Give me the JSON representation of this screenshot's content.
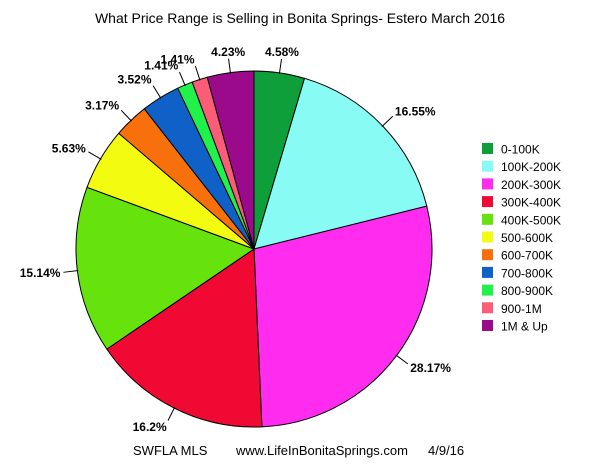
{
  "chart_data": {
    "type": "pie",
    "title": "What Price Range is Selling in Bonita Springs- Estero March 2016",
    "footer": {
      "source": "SWFLA MLS",
      "site": "www.LifeInBonitaSprings.com",
      "date": "4/9/16"
    },
    "legend_position": "right",
    "slices": [
      {
        "label": "0-100K",
        "value": 4.58,
        "value_label": "4.58%",
        "color": "#0e9e3a"
      },
      {
        "label": "100K-200K",
        "value": 16.55,
        "value_label": "16.55%",
        "color": "#88fbf4"
      },
      {
        "label": "200K-300K",
        "value": 28.17,
        "value_label": "28.17%",
        "color": "#ff2cf0"
      },
      {
        "label": "300K-400K",
        "value": 16.2,
        "value_label": "16.2%",
        "color": "#f00a33"
      },
      {
        "label": "400K-500K",
        "value": 15.14,
        "value_label": "15.14%",
        "color": "#66e30d"
      },
      {
        "label": "500-600K",
        "value": 5.63,
        "value_label": "5.63%",
        "color": "#f3fb11"
      },
      {
        "label": "600-700K",
        "value": 3.17,
        "value_label": "3.17%",
        "color": "#f7700c"
      },
      {
        "label": "700-800K",
        "value": 3.52,
        "value_label": "3.52%",
        "color": "#0f61c8"
      },
      {
        "label": "800-900K",
        "value": 1.41,
        "value_label": "1.41%",
        "color": "#21f14b"
      },
      {
        "label": "900-1M",
        "value": 1.41,
        "value_label": "1.41%",
        "color": "#fb5d78"
      },
      {
        "label": "1M & Up",
        "value": 4.23,
        "value_label": "4.23%",
        "color": "#9a0a8a"
      }
    ]
  }
}
